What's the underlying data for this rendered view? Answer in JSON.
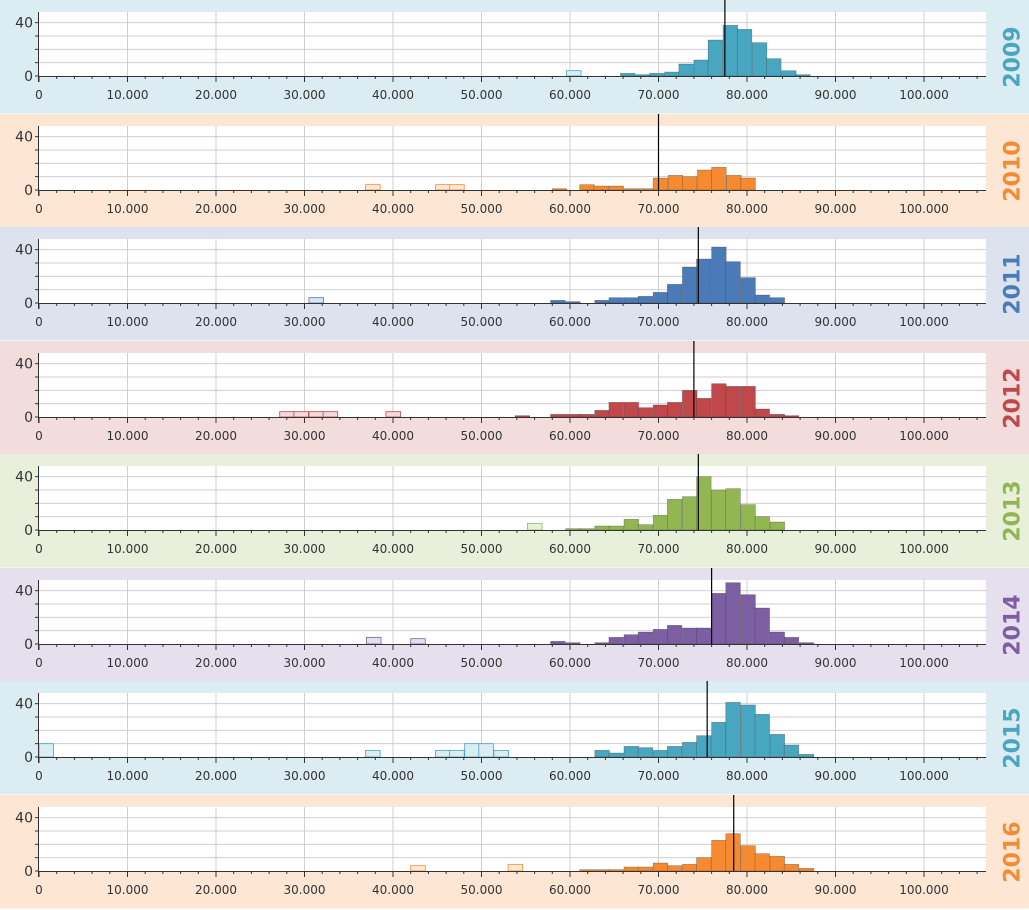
{
  "chart_data": [
    {
      "type": "bar",
      "year_label": "2009",
      "band_color": "#dbedf3",
      "color": "#48a6c0",
      "x_ticks": [
        "0",
        "10.000",
        "20.000",
        "30.000",
        "40.000",
        "50.000",
        "60.000",
        "70.000",
        "80.000",
        "90.000",
        "100.000"
      ],
      "y_ticks": [
        "0",
        "40"
      ],
      "xlim": [
        0,
        107000
      ],
      "ylim": [
        0,
        48
      ],
      "bin_width": 1650,
      "median": 77500,
      "outliers": [
        [
          59600,
          4
        ]
      ],
      "bins": [
        [
          65700,
          2
        ],
        [
          67400,
          1
        ],
        [
          69000,
          2
        ],
        [
          70700,
          3
        ],
        [
          72300,
          9
        ],
        [
          74000,
          12
        ],
        [
          75600,
          27
        ],
        [
          77300,
          38
        ],
        [
          78900,
          35
        ],
        [
          80600,
          25
        ],
        [
          82200,
          13
        ],
        [
          83900,
          4
        ],
        [
          85500,
          1
        ]
      ]
    },
    {
      "type": "bar",
      "year_label": "2010",
      "band_color": "#fde7d4",
      "color": "#f58a30",
      "x_ticks": [
        "0",
        "10.000",
        "20.000",
        "30.000",
        "40.000",
        "50.000",
        "60.000",
        "70.000",
        "80.000",
        "90.000",
        "100.000"
      ],
      "y_ticks": [
        "0",
        "40"
      ],
      "xlim": [
        0,
        107000
      ],
      "ylim": [
        0,
        48
      ],
      "bin_width": 1650,
      "median": 70000,
      "outliers": [
        [
          36900,
          4
        ],
        [
          44800,
          4
        ],
        [
          46400,
          4
        ]
      ],
      "bins": [
        [
          58000,
          1
        ],
        [
          61100,
          4
        ],
        [
          62700,
          3
        ],
        [
          64400,
          3
        ],
        [
          66100,
          1
        ],
        [
          67800,
          1
        ],
        [
          69400,
          9
        ],
        [
          71100,
          11
        ],
        [
          72700,
          10
        ],
        [
          74400,
          15
        ],
        [
          76000,
          17
        ],
        [
          77700,
          11
        ],
        [
          79300,
          9
        ]
      ]
    },
    {
      "type": "bar",
      "year_label": "2011",
      "band_color": "#dce3ef",
      "color": "#4b7ab8",
      "x_ticks": [
        "0",
        "10.000",
        "20.000",
        "30.000",
        "40.000",
        "50.000",
        "60.000",
        "70.000",
        "80.000",
        "90.000",
        "100.000"
      ],
      "y_ticks": [
        "0",
        "40"
      ],
      "xlim": [
        0,
        107000
      ],
      "ylim": [
        0,
        48
      ],
      "bin_width": 1650,
      "median": 74500,
      "outliers": [
        [
          30500,
          4
        ]
      ],
      "bins": [
        [
          57800,
          2
        ],
        [
          59500,
          1
        ],
        [
          62800,
          2
        ],
        [
          64400,
          4
        ],
        [
          66100,
          4
        ],
        [
          67700,
          5
        ],
        [
          69400,
          8
        ],
        [
          71000,
          14
        ],
        [
          72700,
          27
        ],
        [
          74300,
          33
        ],
        [
          76000,
          42
        ],
        [
          77600,
          31
        ],
        [
          79300,
          19
        ],
        [
          80900,
          6
        ],
        [
          82600,
          4
        ]
      ]
    },
    {
      "type": "bar",
      "year_label": "2012",
      "band_color": "#f3dcdc",
      "color": "#c0484a",
      "x_ticks": [
        "0",
        "10.000",
        "20.000",
        "30.000",
        "40.000",
        "50.000",
        "60.000",
        "70.000",
        "80.000",
        "90.000",
        "100.000"
      ],
      "y_ticks": [
        "0",
        "40"
      ],
      "xlim": [
        0,
        107000
      ],
      "ylim": [
        0,
        48
      ],
      "bin_width": 1650,
      "median": 74000,
      "outliers": [
        [
          27200,
          4
        ],
        [
          28800,
          4
        ],
        [
          30500,
          4
        ],
        [
          32100,
          4
        ],
        [
          39200,
          4
        ]
      ],
      "bins": [
        [
          53800,
          1
        ],
        [
          57800,
          2
        ],
        [
          59500,
          2
        ],
        [
          61100,
          2
        ],
        [
          62800,
          5
        ],
        [
          64400,
          11
        ],
        [
          66100,
          11
        ],
        [
          67700,
          7
        ],
        [
          69400,
          9
        ],
        [
          71000,
          11
        ],
        [
          72700,
          20
        ],
        [
          74300,
          14
        ],
        [
          76000,
          25
        ],
        [
          77600,
          23
        ],
        [
          79300,
          23
        ],
        [
          80900,
          6
        ],
        [
          82600,
          2
        ],
        [
          84200,
          1
        ]
      ]
    },
    {
      "type": "bar",
      "year_label": "2013",
      "band_color": "#e8efdb",
      "color": "#92b652",
      "x_ticks": [
        "0",
        "10.000",
        "20.000",
        "30.000",
        "40.000",
        "50.000",
        "60.000",
        "70.000",
        "80.000",
        "90.000",
        "100.000"
      ],
      "y_ticks": [
        "0",
        "40"
      ],
      "xlim": [
        0,
        107000
      ],
      "ylim": [
        0,
        48
      ],
      "bin_width": 1650,
      "median": 74500,
      "outliers": [
        [
          55200,
          5
        ]
      ],
      "bins": [
        [
          59500,
          1
        ],
        [
          61100,
          1
        ],
        [
          62800,
          3
        ],
        [
          64400,
          3
        ],
        [
          66100,
          8
        ],
        [
          67700,
          4
        ],
        [
          69400,
          11
        ],
        [
          71000,
          23
        ],
        [
          72700,
          25
        ],
        [
          74300,
          40
        ],
        [
          76000,
          30
        ],
        [
          77600,
          31
        ],
        [
          79300,
          19
        ],
        [
          80900,
          10
        ],
        [
          82600,
          6
        ]
      ]
    },
    {
      "type": "bar",
      "year_label": "2014",
      "band_color": "#e6e0ee",
      "color": "#7c5fa2",
      "x_ticks": [
        "0",
        "10.000",
        "20.000",
        "30.000",
        "40.000",
        "50.000",
        "60.000",
        "70.000",
        "80.000",
        "90.000",
        "100.000"
      ],
      "y_ticks": [
        "0",
        "40"
      ],
      "xlim": [
        0,
        107000
      ],
      "ylim": [
        0,
        48
      ],
      "bin_width": 1650,
      "median": 76000,
      "outliers": [
        [
          37000,
          5
        ],
        [
          42000,
          4
        ]
      ],
      "bins": [
        [
          57800,
          2
        ],
        [
          59500,
          1
        ],
        [
          62800,
          1
        ],
        [
          64400,
          5
        ],
        [
          66100,
          7
        ],
        [
          67700,
          9
        ],
        [
          69400,
          11
        ],
        [
          71000,
          14
        ],
        [
          72700,
          12
        ],
        [
          74300,
          12
        ],
        [
          76000,
          38
        ],
        [
          77600,
          46
        ],
        [
          79300,
          37
        ],
        [
          80900,
          27
        ],
        [
          82600,
          9
        ],
        [
          84200,
          5
        ],
        [
          85900,
          1
        ]
      ]
    },
    {
      "type": "bar",
      "year_label": "2015",
      "band_color": "#dbedf3",
      "color": "#48a6c0",
      "x_ticks": [
        "0",
        "10.000",
        "20.000",
        "30.000",
        "40.000",
        "50.000",
        "60.000",
        "70.000",
        "80.000",
        "90.000",
        "100.000"
      ],
      "y_ticks": [
        "0",
        "40"
      ],
      "xlim": [
        0,
        107000
      ],
      "ylim": [
        0,
        48
      ],
      "bin_width": 1650,
      "median": 75500,
      "outliers": [
        [
          0,
          10
        ],
        [
          36900,
          5
        ],
        [
          44800,
          5
        ],
        [
          46400,
          5
        ],
        [
          48100,
          10
        ],
        [
          49700,
          10
        ],
        [
          51400,
          5
        ]
      ],
      "bins": [
        [
          62800,
          5
        ],
        [
          64400,
          3
        ],
        [
          66100,
          8
        ],
        [
          67700,
          7
        ],
        [
          69400,
          5
        ],
        [
          71000,
          8
        ],
        [
          72700,
          11
        ],
        [
          74300,
          16
        ],
        [
          76000,
          26
        ],
        [
          77600,
          41
        ],
        [
          79300,
          39
        ],
        [
          80900,
          32
        ],
        [
          82600,
          17
        ],
        [
          84200,
          9
        ],
        [
          85900,
          2
        ]
      ]
    },
    {
      "type": "bar",
      "year_label": "2016",
      "band_color": "#fde7d4",
      "color": "#f58a30",
      "x_ticks": [
        "0",
        "10.000",
        "20.000",
        "30.000",
        "40.000",
        "50.000",
        "60.000",
        "70.000",
        "80.000",
        "90.000",
        "100.000"
      ],
      "y_ticks": [
        "0",
        "40"
      ],
      "xlim": [
        0,
        107000
      ],
      "ylim": [
        0,
        48
      ],
      "bin_width": 1650,
      "median": 78500,
      "outliers": [
        [
          42000,
          4
        ],
        [
          53000,
          5
        ]
      ],
      "bins": [
        [
          61100,
          1
        ],
        [
          62800,
          1
        ],
        [
          64400,
          1
        ],
        [
          66100,
          3
        ],
        [
          67700,
          3
        ],
        [
          69400,
          6
        ],
        [
          71000,
          4
        ],
        [
          72700,
          5
        ],
        [
          74300,
          10
        ],
        [
          76000,
          23
        ],
        [
          77600,
          28
        ],
        [
          79300,
          19
        ],
        [
          80900,
          13
        ],
        [
          82600,
          11
        ],
        [
          84200,
          5
        ],
        [
          85900,
          2
        ]
      ]
    }
  ]
}
